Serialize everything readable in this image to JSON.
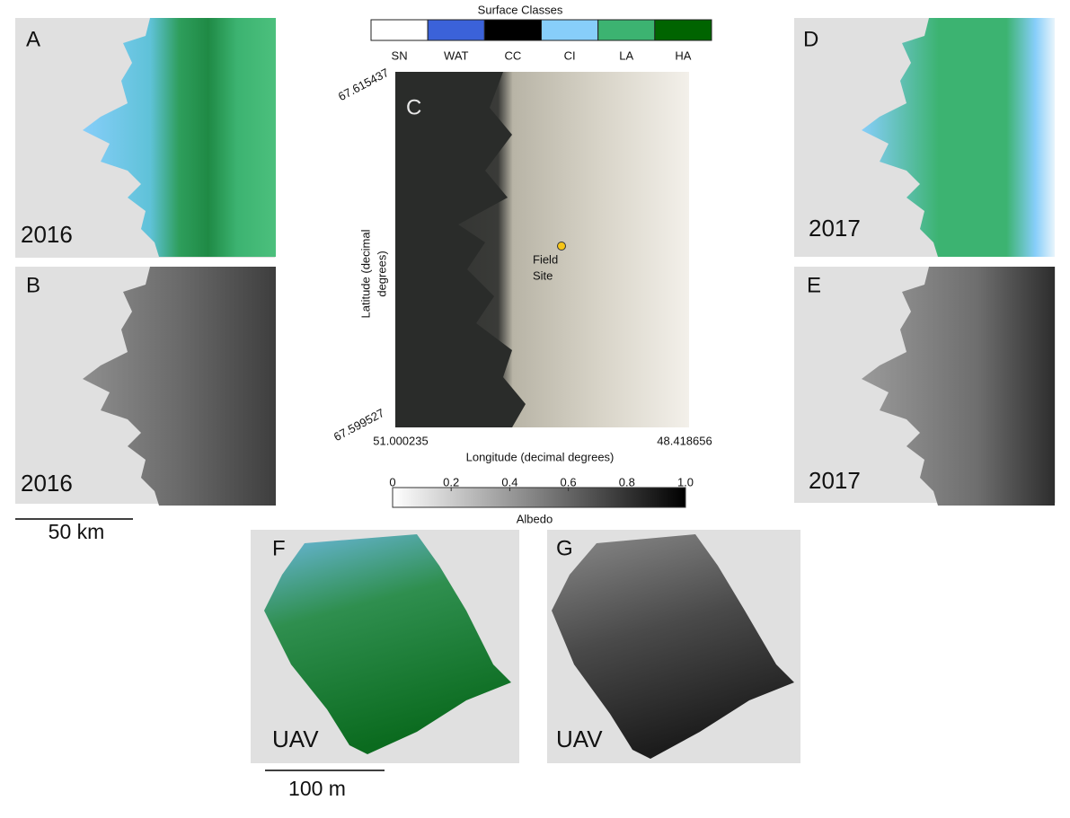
{
  "panels": {
    "A": {
      "label": "A",
      "caption": "2016"
    },
    "B": {
      "label": "B",
      "caption": "2016"
    },
    "C": {
      "label": "C"
    },
    "D": {
      "label": "D",
      "caption": "2017"
    },
    "E": {
      "label": "E",
      "caption": "2017"
    },
    "F": {
      "label": "F",
      "caption": "UAV"
    },
    "G": {
      "label": "G",
      "caption": "UAV"
    }
  },
  "legend": {
    "title": "Surface Classes",
    "classes": [
      {
        "label": "SN",
        "color": "#ffffff"
      },
      {
        "label": "WAT",
        "color": "#3b62d9"
      },
      {
        "label": "CC",
        "color": "#000000"
      },
      {
        "label": "CI",
        "color": "#87cefa"
      },
      {
        "label": "LA",
        "color": "#3cb371"
      },
      {
        "label": "HA",
        "color": "#006400"
      }
    ]
  },
  "map_c": {
    "lat_top": "67.615437",
    "lat_bottom": "67.599527",
    "lon_left": "51.000235",
    "lon_right": "48.418656",
    "x_axis_label": "Longitude (decimal degrees)",
    "y_axis_label": [
      "Latitude (decimal",
      "degrees)"
    ],
    "annotation": [
      "Field",
      "Site"
    ]
  },
  "albedo_scale": {
    "label": "Albedo",
    "range": [
      0,
      1
    ],
    "ticks": [
      0,
      0.2,
      0.4,
      0.6,
      0.8,
      {
        "value": 1,
        "label": "1.0"
      }
    ]
  },
  "scale_bars": {
    "satellite": "50 km",
    "uav": "100 m"
  }
}
